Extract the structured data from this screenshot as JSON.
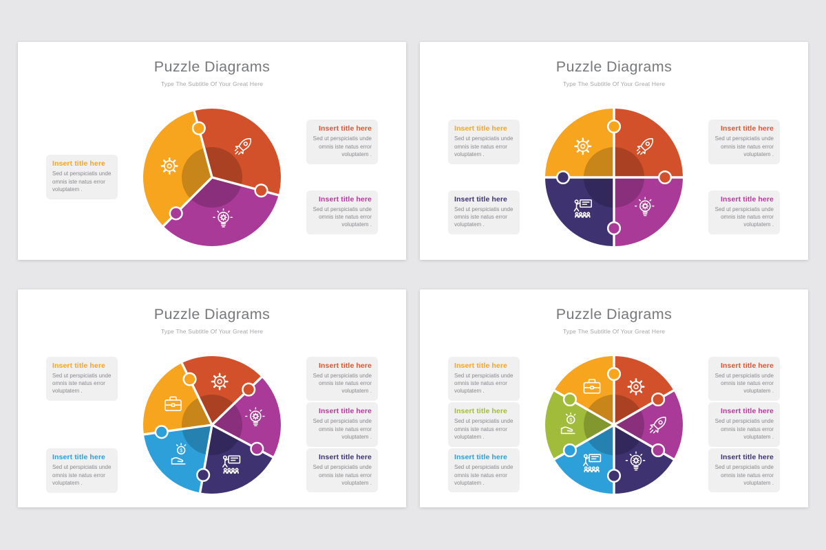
{
  "page": {
    "background_color": "#E7E6E8",
    "card_color": "#FFFFFF",
    "textbox_color": "#F0F0F1",
    "body_text_color": "#87888C",
    "title_text_color": "#77787B",
    "subtitle_text_color": "#A4A4A8"
  },
  "palette": {
    "yellow": "#F7A41F",
    "red": "#D2512B",
    "magenta": "#A93A98",
    "navy": "#3F3271",
    "blue": "#2D9FD9",
    "green": "#A1BC3B"
  },
  "slides": [
    {
      "title": "Puzzle Diagrams",
      "subtitle": "Type The Subtitle Of Your Great Here",
      "puzzle": {
        "pieces": 3,
        "start_angle": 345,
        "segments": [
          {
            "color": "#D2512B",
            "icon": "rocket-icon"
          },
          {
            "color": "#F7A41F",
            "icon": "gear-icon"
          },
          {
            "color": "#A93A98",
            "icon": "bulb-gear-icon"
          }
        ]
      },
      "left_boxes": [
        {
          "title": "Insert title here",
          "title_color": "#F5A623",
          "body": "Sed ut perspiciatis unde omnis iste natus error voluptatem ."
        }
      ],
      "right_boxes": [
        {
          "title": "Insert title here",
          "title_color": "#DE5532",
          "body": "Sed ut perspiciatis unde omnis iste natus error voluptatem ."
        },
        {
          "title": "Insert title here",
          "title_color": "#B43A9C",
          "body": "Sed ut perspiciatis unde omnis iste natus error voluptatem ."
        }
      ]
    },
    {
      "title": "Puzzle Diagrams",
      "subtitle": "Type The Subtitle Of Your Great Here",
      "puzzle": {
        "pieces": 4,
        "start_angle": 90,
        "segments": [
          {
            "color": "#F7A41F",
            "icon": "gear-icon"
          },
          {
            "color": "#3F3271",
            "icon": "presentation-icon"
          },
          {
            "color": "#A93A98",
            "icon": "bulb-gear-icon"
          },
          {
            "color": "#D2512B",
            "icon": "rocket-icon"
          }
        ]
      },
      "left_boxes": [
        {
          "title": "Insert title here",
          "title_color": "#F5A623",
          "body": "Sed ut perspiciatis unde omnis iste natus error voluptatem ."
        },
        {
          "title": "Insert title here",
          "title_color": "#3F3271",
          "body": "Sed ut perspiciatis unde omnis iste natus error voluptatem ."
        }
      ],
      "right_boxes": [
        {
          "title": "Insert title here",
          "title_color": "#DE5532",
          "body": "Sed ut perspiciatis unde omnis iste natus error voluptatem ."
        },
        {
          "title": "Insert title here",
          "title_color": "#B43A9C",
          "body": "Sed ut perspiciatis unde omnis iste natus error voluptatem ."
        }
      ]
    },
    {
      "title": "Puzzle Diagrams",
      "subtitle": "Type The Subtitle Of Your Great Here",
      "puzzle": {
        "pieces": 5,
        "start_angle": 44,
        "segments": [
          {
            "color": "#D2512B",
            "icon": "gear-icon"
          },
          {
            "color": "#F7A41F",
            "icon": "briefcase-icon"
          },
          {
            "color": "#2D9FD9",
            "icon": "money-hand-icon"
          },
          {
            "color": "#3F3271",
            "icon": "presentation-icon"
          },
          {
            "color": "#A93A98",
            "icon": "bulb-gear-icon"
          }
        ]
      },
      "left_boxes": [
        {
          "title": "Insert title here",
          "title_color": "#F5A623",
          "body": "Sed ut perspiciatis unde omnis iste natus error voluptatem ."
        },
        {
          "title": "Insert title here",
          "title_color": "#2D9FD9",
          "body": "Sed ut perspiciatis unde omnis iste natus error voluptatem ."
        }
      ],
      "right_boxes": [
        {
          "title": "Insert title here",
          "title_color": "#DE5532",
          "body": "Sed ut perspiciatis unde omnis iste natus error voluptatem ."
        },
        {
          "title": "Insert title here",
          "title_color": "#B43A9C",
          "body": "Sed ut perspiciatis unde omnis iste natus error voluptatem ."
        },
        {
          "title": "Insert title here",
          "title_color": "#3F3271",
          "body": "Sed ut perspiciatis unde omnis iste natus error voluptatem ."
        }
      ]
    },
    {
      "title": "Puzzle Diagrams",
      "subtitle": "Type The Subtitle Of Your Great Here",
      "puzzle": {
        "pieces": 6,
        "start_angle": 90,
        "segments": [
          {
            "color": "#F7A41F",
            "icon": "briefcase-icon"
          },
          {
            "color": "#A1BC3B",
            "icon": "money-hand-icon"
          },
          {
            "color": "#2D9FD9",
            "icon": "presentation-icon"
          },
          {
            "color": "#3F3271",
            "icon": "bulb-gear-icon"
          },
          {
            "color": "#A93A98",
            "icon": "rocket-icon"
          },
          {
            "color": "#D2512B",
            "icon": "gear-icon"
          }
        ]
      },
      "left_boxes": [
        {
          "title": "Insert title here",
          "title_color": "#F5A623",
          "body": "Sed ut perspiciatis unde omnis iste natus error voluptatem ."
        },
        {
          "title": "Insert title here",
          "title_color": "#A1BC3B",
          "body": "Sed ut perspiciatis unde omnis iste natus error voluptatem ."
        },
        {
          "title": "Insert title here",
          "title_color": "#2D9FD9",
          "body": "Sed ut perspiciatis unde omnis iste natus error voluptatem ."
        }
      ],
      "right_boxes": [
        {
          "title": "Insert title here",
          "title_color": "#DE5532",
          "body": "Sed ut perspiciatis unde omnis iste natus error voluptatem ."
        },
        {
          "title": "Insert title here",
          "title_color": "#B43A9C",
          "body": "Sed ut perspiciatis unde omnis iste natus error voluptatem ."
        },
        {
          "title": "Insert title here",
          "title_color": "#3F3271",
          "body": "Sed ut perspiciatis unde omnis iste natus error voluptatem ."
        }
      ]
    }
  ]
}
